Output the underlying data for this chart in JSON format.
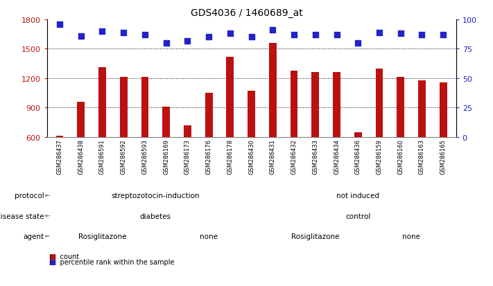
{
  "title": "GDS4036 / 1460689_at",
  "samples": [
    "GSM286437",
    "GSM286438",
    "GSM286591",
    "GSM286592",
    "GSM286593",
    "GSM286169",
    "GSM286173",
    "GSM286176",
    "GSM286178",
    "GSM286430",
    "GSM286431",
    "GSM286432",
    "GSM286433",
    "GSM286434",
    "GSM286436",
    "GSM286159",
    "GSM286160",
    "GSM286163",
    "GSM286165"
  ],
  "counts": [
    615,
    960,
    1310,
    1210,
    1215,
    910,
    720,
    1050,
    1420,
    1070,
    1560,
    1280,
    1265,
    1260,
    645,
    1300,
    1215,
    1175,
    1160
  ],
  "percentiles": [
    96,
    86,
    90,
    89,
    87,
    80,
    82,
    85,
    88,
    85,
    91,
    87,
    87,
    87,
    80,
    89,
    88,
    87,
    87
  ],
  "ylim_left": [
    600,
    1800
  ],
  "ylim_right": [
    0,
    100
  ],
  "yticks_left": [
    600,
    900,
    1200,
    1500,
    1800
  ],
  "yticks_right": [
    0,
    25,
    50,
    75,
    100
  ],
  "bar_color": "#bb1111",
  "dot_color": "#2222cc",
  "protocol_labels": [
    "streptozotocin-induction",
    "not induced"
  ],
  "protocol_color": "#99dd88",
  "disease_labels": [
    "diabetes",
    "control"
  ],
  "disease_color": "#aaaaee",
  "agent_labels": [
    "Rosiglitazone",
    "none",
    "Rosiglitazone",
    "none"
  ],
  "agent_color_1": "#f0b8a8",
  "agent_color_2": "#dd8888",
  "background_color": "#ffffff",
  "legend_count_color": "#bb1111",
  "legend_dot_color": "#2222cc",
  "row_label_color": "#444444",
  "split_at": 10,
  "n_group1": 10,
  "n_group2": 9
}
